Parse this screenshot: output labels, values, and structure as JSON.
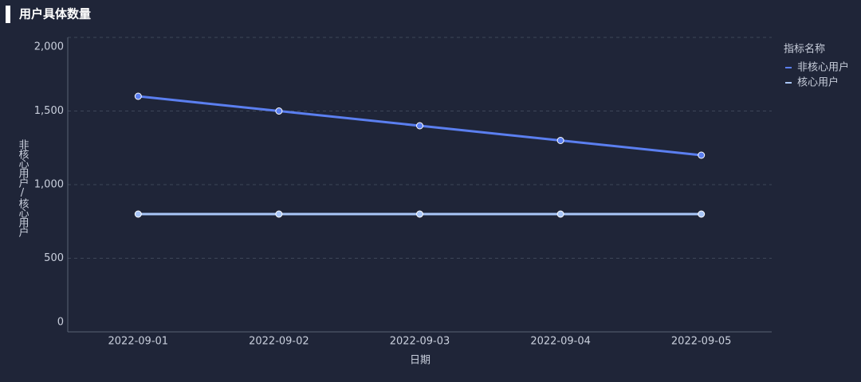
{
  "chart_data": {
    "type": "line",
    "title": "用户具体数量",
    "x_label": "日期",
    "y_label": "非核心用户/核心用户",
    "categories": [
      "2022-09-01",
      "2022-09-02",
      "2022-09-03",
      "2022-09-04",
      "2022-09-05"
    ],
    "series": [
      {
        "name": "非核心用户",
        "color": "#5b7ff0",
        "values": [
          1600,
          1500,
          1400,
          1300,
          1200
        ]
      },
      {
        "name": "核心用户",
        "color": "#a9c6f7",
        "values": [
          800,
          800,
          800,
          800,
          800
        ]
      }
    ],
    "ylim": [
      0,
      2000
    ],
    "yticks": [
      0,
      500,
      {
        "value": 1000,
        "label": "1,000"
      },
      {
        "value": 1500,
        "label": "1,500"
      },
      {
        "value": 2000,
        "label": "2,000"
      }
    ],
    "grid": true,
    "legend_title": "指标名称",
    "legend_position": "right"
  }
}
